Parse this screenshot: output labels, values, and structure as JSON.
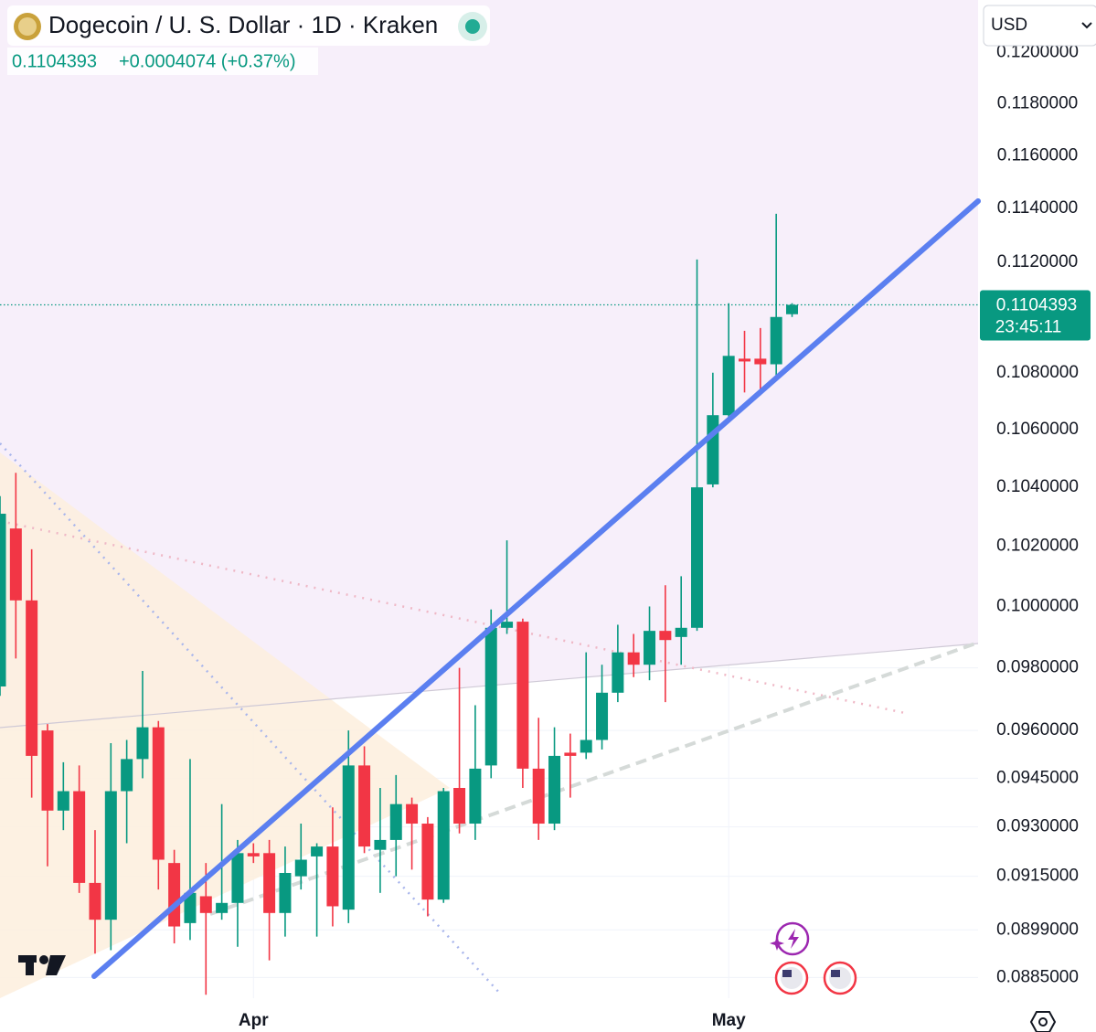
{
  "chart_data": {
    "type": "candlestick",
    "title": "Dogecoin / U. S. Dollar · 1D · Kraken",
    "last_price": 0.1104393,
    "change": "+0.0004074 (+0.37%)",
    "countdown": "23:45:11",
    "currency": "USD",
    "log_scale": true,
    "grid": true,
    "up_color": "#089981",
    "down_color": "#f23645",
    "categories": [
      null,
      null,
      null,
      null,
      null,
      null,
      null,
      null,
      null,
      null,
      null,
      null,
      null,
      null,
      null,
      null,
      "Apr",
      null,
      null,
      null,
      null,
      null,
      null,
      null,
      null,
      null,
      null,
      null,
      null,
      null,
      null,
      null,
      null,
      null,
      null,
      null,
      null,
      null,
      null,
      null,
      null,
      null,
      null,
      null,
      null,
      null,
      "May",
      null,
      null,
      null,
      null
    ],
    "open": [
      0.0974,
      0.1026,
      0.1002,
      0.096,
      0.0935,
      0.0941,
      0.0913,
      0.0902,
      0.0941,
      0.0951,
      0.0961,
      0.0919,
      0.0901,
      0.0909,
      0.0904,
      0.0907,
      0.0922,
      0.0922,
      0.0904,
      0.0915,
      0.0921,
      0.0924,
      0.0905,
      0.0949,
      0.0923,
      0.0926,
      0.0937,
      0.0931,
      0.0908,
      0.0942,
      0.0931,
      0.0949,
      0.0993,
      0.0995,
      0.0948,
      0.0931,
      0.0953,
      0.0953,
      0.0957,
      0.0972,
      0.0985,
      0.0981,
      0.0992,
      0.099,
      0.0993,
      0.1041,
      0.1065,
      0.1085,
      0.1085,
      0.1083,
      0.1101
    ],
    "high": [
      0.1037,
      0.1045,
      0.1019,
      0.0962,
      0.095,
      0.0949,
      0.0929,
      0.0956,
      0.0957,
      0.0979,
      0.0963,
      0.0923,
      0.0951,
      0.0919,
      0.0937,
      0.0926,
      0.0925,
      0.0926,
      0.0924,
      0.0931,
      0.0925,
      0.0936,
      0.096,
      0.0955,
      0.0942,
      0.0946,
      0.0939,
      0.0933,
      0.0942,
      0.098,
      0.0968,
      0.0999,
      0.1022,
      0.0996,
      0.0964,
      0.0961,
      0.0959,
      0.0985,
      0.0981,
      0.0994,
      0.0991,
      0.1,
      0.1007,
      0.101,
      0.1121,
      0.108,
      0.1105,
      0.1095,
      0.1096,
      0.1138,
      0.1105
    ],
    "low": [
      0.0971,
      0.0983,
      0.0939,
      0.0918,
      0.0929,
      0.091,
      0.0892,
      0.0893,
      0.0925,
      0.0945,
      0.0911,
      0.0895,
      0.0896,
      0.088,
      0.0902,
      0.0894,
      0.0919,
      0.089,
      0.0897,
      0.0911,
      0.0897,
      0.09,
      0.0901,
      0.0922,
      0.091,
      0.0915,
      0.0917,
      0.0903,
      0.0907,
      0.0928,
      0.0926,
      0.0945,
      0.0991,
      0.0942,
      0.0926,
      0.0929,
      0.0939,
      0.0951,
      0.0954,
      0.0969,
      0.0977,
      0.0976,
      0.0969,
      0.0981,
      0.0992,
      0.104,
      0.1063,
      0.1073,
      0.1072,
      0.1079,
      0.11
    ],
    "close": [
      0.1031,
      0.1002,
      0.0952,
      0.0935,
      0.0941,
      0.0913,
      0.0902,
      0.0941,
      0.0951,
      0.0961,
      0.092,
      0.09,
      0.091,
      0.0904,
      0.0907,
      0.0922,
      0.0921,
      0.0904,
      0.0916,
      0.092,
      0.0924,
      0.0906,
      0.0949,
      0.0924,
      0.0926,
      0.0937,
      0.0931,
      0.0908,
      0.0941,
      0.0931,
      0.0948,
      0.0993,
      0.0995,
      0.0948,
      0.0931,
      0.0952,
      0.0952,
      0.0957,
      0.0972,
      0.0985,
      0.0981,
      0.0992,
      0.0989,
      0.0993,
      0.104,
      0.1065,
      0.1086,
      0.1084,
      0.1083,
      0.11,
      0.1104393
    ],
    "ylim": [
      0.0879,
      0.1221
    ],
    "yticks": [
      {
        "value": 0.0885,
        "label": "0.0885000"
      },
      {
        "value": 0.0899,
        "label": "0.0899000"
      },
      {
        "value": 0.0915,
        "label": "0.0915000"
      },
      {
        "value": 0.093,
        "label": "0.0930000"
      },
      {
        "value": 0.0945,
        "label": "0.0945000"
      },
      {
        "value": 0.096,
        "label": "0.0960000"
      },
      {
        "value": 0.098,
        "label": "0.0980000"
      },
      {
        "value": 0.1,
        "label": "0.1000000"
      },
      {
        "value": 0.102,
        "label": "0.1020000"
      },
      {
        "value": 0.104,
        "label": "0.1040000"
      },
      {
        "value": 0.106,
        "label": "0.1060000"
      },
      {
        "value": 0.108,
        "label": "0.1080000"
      },
      {
        "value": 0.112,
        "label": "0.1120000"
      },
      {
        "value": 0.114,
        "label": "0.1140000"
      },
      {
        "value": 0.116,
        "label": "0.1160000"
      },
      {
        "value": 0.118,
        "label": "0.1180000"
      },
      {
        "value": 0.12,
        "label": "0.1200000"
      }
    ]
  }
}
